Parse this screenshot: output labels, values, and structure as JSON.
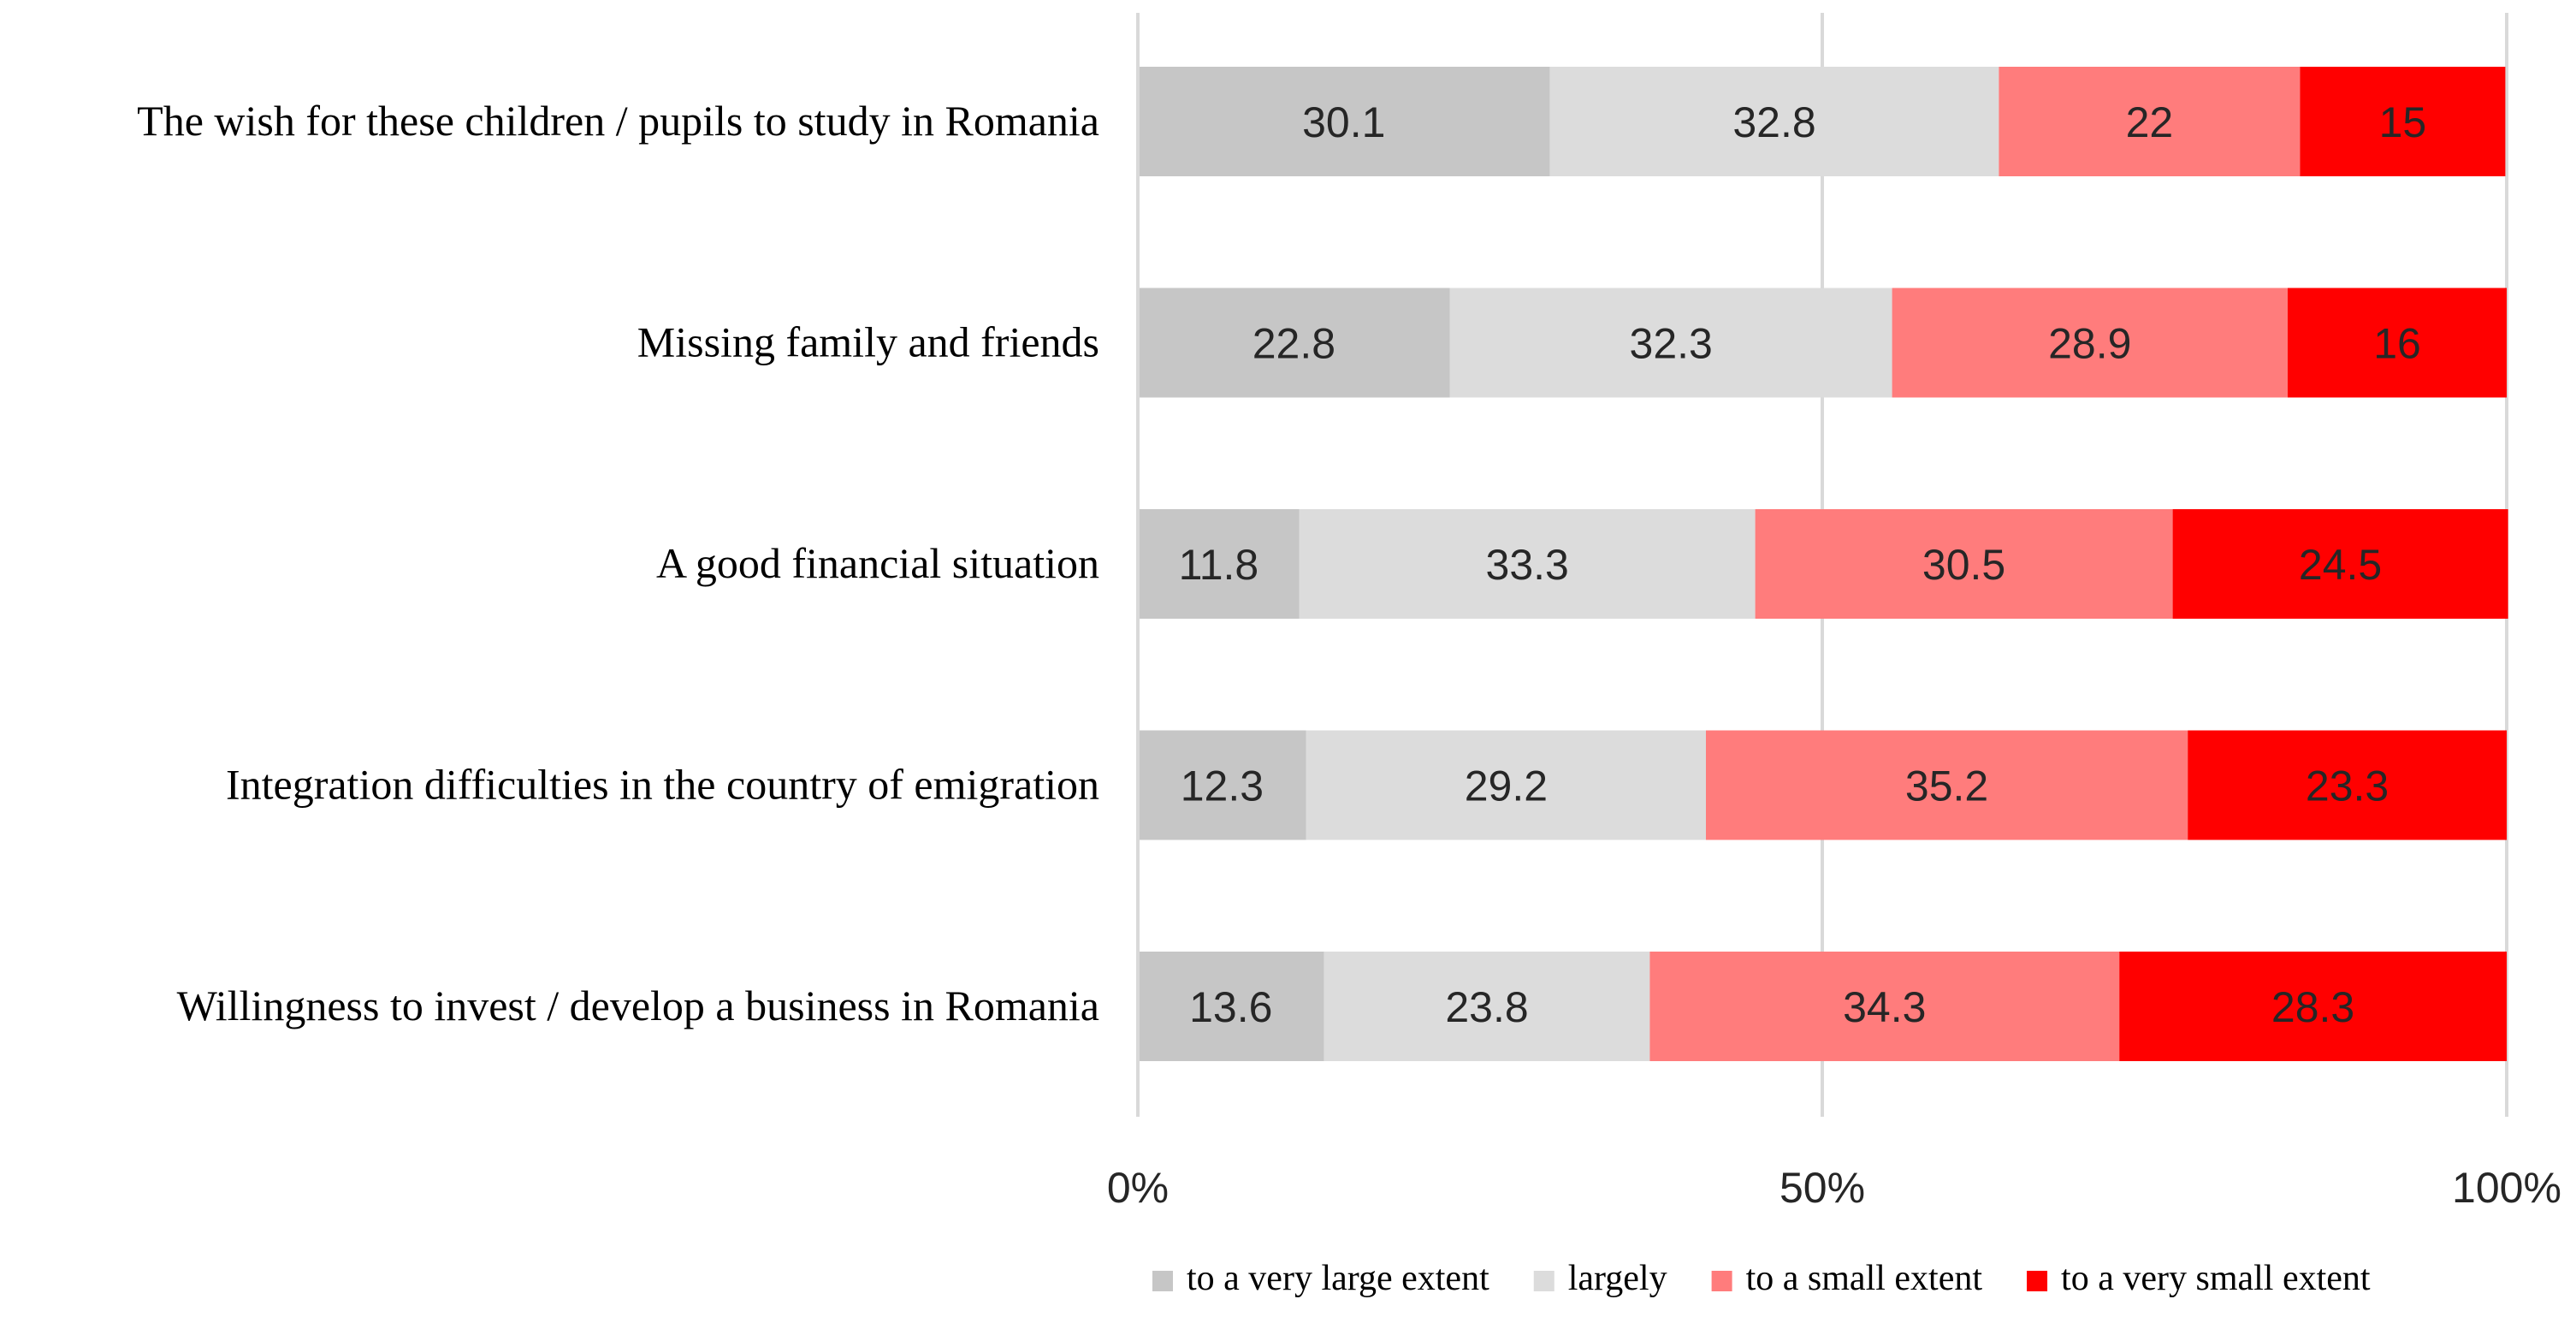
{
  "chart_data": {
    "type": "bar",
    "orientation": "horizontal",
    "stacked": "percent",
    "title": "",
    "xlabel": "",
    "ylabel": "",
    "xlim": [
      0,
      100
    ],
    "x_ticks": [
      "0%",
      "50%",
      "100%"
    ],
    "grid": true,
    "legend_position": "bottom",
    "categories": [
      "The wish for these children / pupils to study in Romania",
      "Missing family and friends",
      "A good financial situation",
      "Integration difficulties in the country of emigration",
      "Willingness to invest / develop a business in Romania"
    ],
    "series": [
      {
        "name": "to a very large extent",
        "color": "#c6c6c6",
        "values": [
          30.1,
          22.8,
          11.8,
          12.3,
          13.6
        ]
      },
      {
        "name": "largely",
        "color": "#dcdcdc",
        "values": [
          32.8,
          32.3,
          33.3,
          29.2,
          23.8
        ]
      },
      {
        "name": "to a small extent",
        "color": "#ff7c7c",
        "values": [
          22,
          28.9,
          30.5,
          35.2,
          34.3
        ]
      },
      {
        "name": "to a very small extent",
        "color": "#ff0000",
        "values": [
          15,
          16,
          24.5,
          23.3,
          28.3
        ]
      }
    ]
  }
}
